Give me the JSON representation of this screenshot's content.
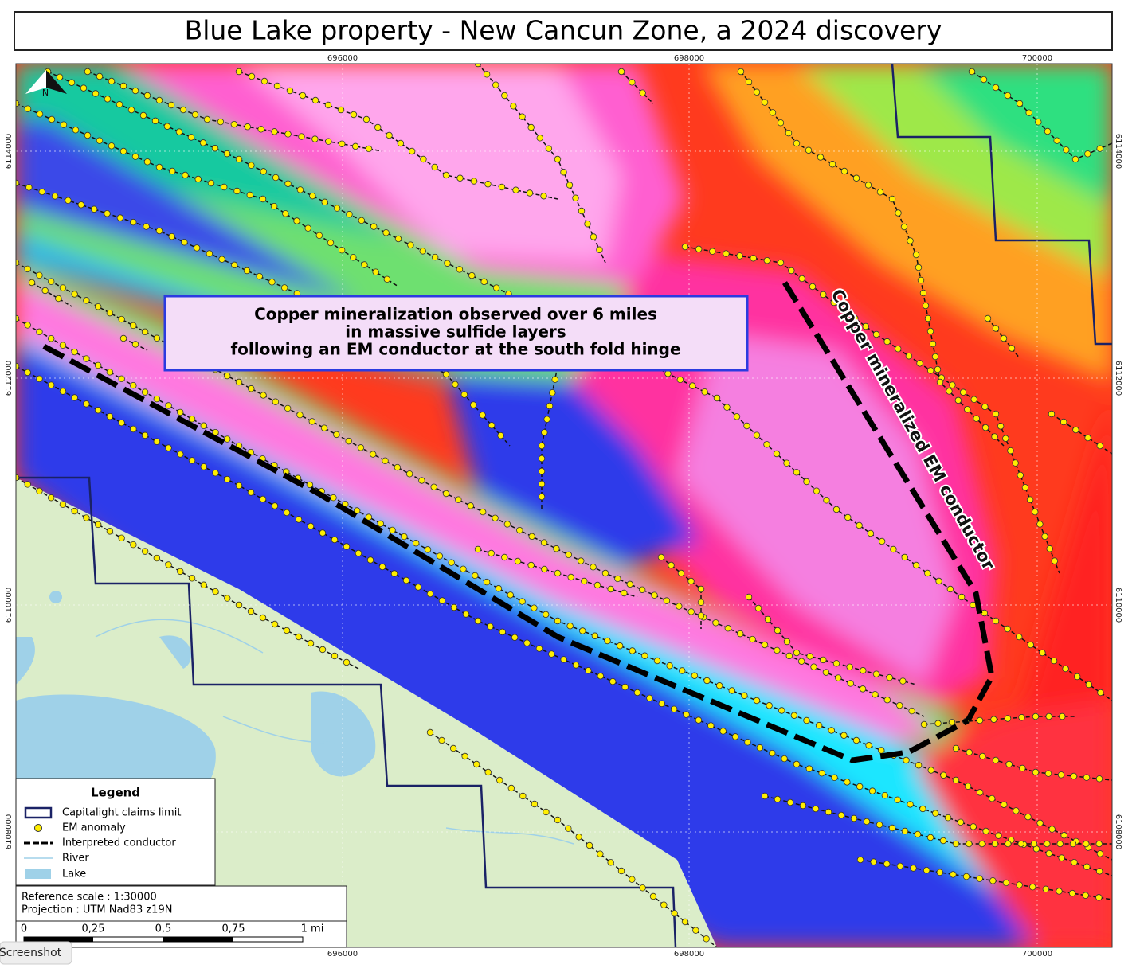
{
  "title": "Blue Lake property - New Cancun Zone, a 2024 discovery",
  "grid": {
    "x_labels_top": [
      696000,
      698000,
      700000
    ],
    "x_labels_bottom": [
      696000,
      698000,
      700000
    ],
    "y_labels_left": [
      6114000,
      6112000,
      6110000,
      6108000
    ],
    "y_labels_right": [
      6114000,
      6112000,
      6110000,
      6108000
    ]
  },
  "north": "N",
  "callout": [
    "Copper mineralization observed over 6 miles",
    "in massive sulfide layers",
    "following an EM conductor at the south fold hinge"
  ],
  "conductor_label": "Copper mineralized EM conductor",
  "legend": {
    "title": "Legend",
    "items": [
      "Capitalight claims limit",
      "EM anomaly",
      "Interpreted conductor",
      "River",
      "Lake"
    ]
  },
  "reference": {
    "scale": "Reference scale : 1:30000",
    "projection": "Projection : UTM Nad83 z19N"
  },
  "scale_bar": [
    "0",
    "0,25",
    "0,5",
    "0,75",
    "1 mi"
  ],
  "tag": "Screenshot"
}
